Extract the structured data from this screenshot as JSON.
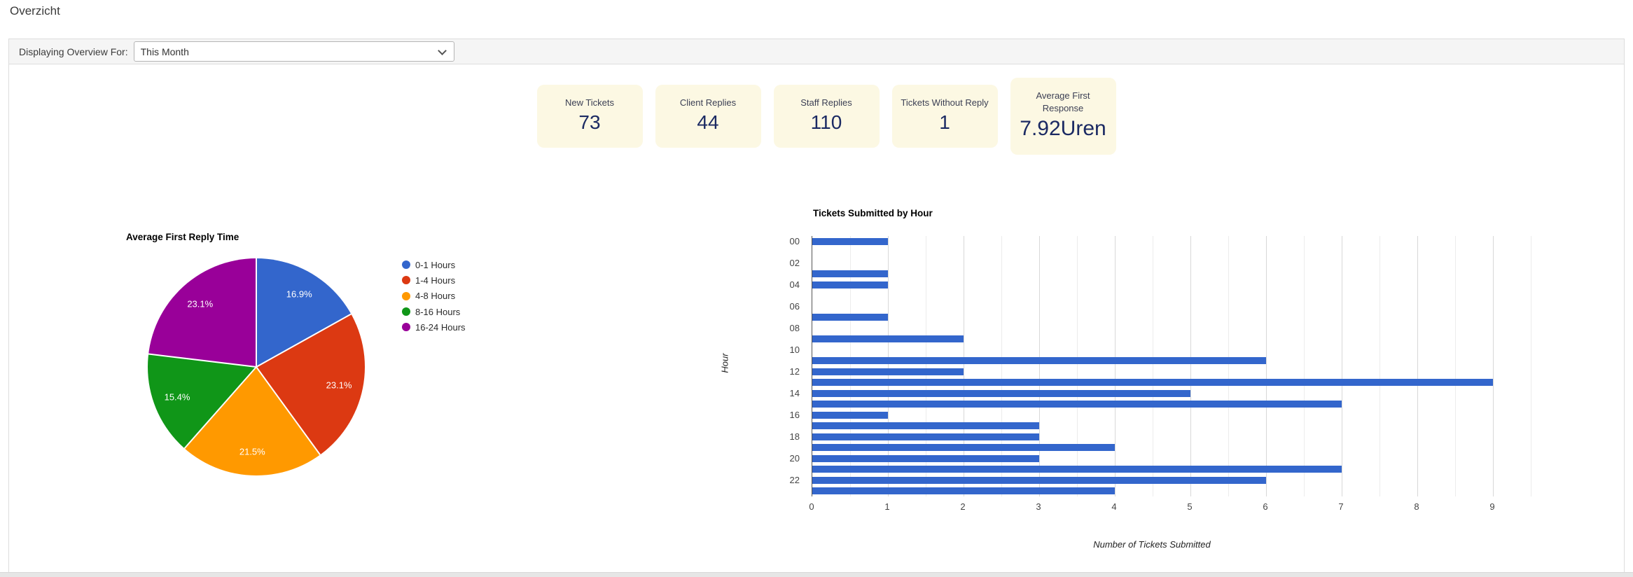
{
  "page": {
    "title": "Overzicht"
  },
  "toolbar": {
    "label": "Displaying Overview For:",
    "period_selected": "This Month"
  },
  "stats": [
    {
      "label": "New Tickets",
      "value": "73"
    },
    {
      "label": "Client Replies",
      "value": "44"
    },
    {
      "label": "Staff Replies",
      "value": "110"
    },
    {
      "label": "Tickets Without Reply",
      "value": "1"
    },
    {
      "label": "Average First Response",
      "value": "7.92Uren"
    }
  ],
  "chart_data": [
    {
      "type": "pie",
      "title": "Average First Reply Time",
      "legend_position": "right",
      "direction": "clockwise",
      "start_angle_deg": 0,
      "slices": [
        {
          "label": "0-1 Hours",
          "percent": 16.9,
          "color": "#3366CC"
        },
        {
          "label": "1-4 Hours",
          "percent": 23.1,
          "color": "#DC3912"
        },
        {
          "label": "4-8 Hours",
          "percent": 21.5,
          "color": "#FF9900"
        },
        {
          "label": "8-16 Hours",
          "percent": 15.4,
          "color": "#109618"
        },
        {
          "label": "16-24 Hours",
          "percent": 23.1,
          "color": "#990099"
        }
      ]
    },
    {
      "type": "bar",
      "orientation": "horizontal",
      "title": "Tickets Submitted by Hour",
      "xlabel": "Number of Tickets Submitted",
      "ylabel": "Hour",
      "categories": [
        "00",
        "01",
        "02",
        "03",
        "04",
        "05",
        "06",
        "07",
        "08",
        "09",
        "10",
        "11",
        "12",
        "13",
        "14",
        "15",
        "16",
        "17",
        "18",
        "19",
        "20",
        "21",
        "22",
        "23"
      ],
      "values": [
        1,
        0,
        0,
        1,
        1,
        0,
        0,
        1,
        0,
        2,
        0,
        6,
        2,
        9,
        5,
        7,
        1,
        3,
        3,
        4,
        3,
        7,
        6,
        4
      ],
      "visible_ytick_labels": [
        "00",
        "02",
        "04",
        "06",
        "08",
        "10",
        "12",
        "14",
        "16",
        "18",
        "20",
        "22"
      ],
      "xticks": [
        0,
        1,
        2,
        3,
        4,
        5,
        6,
        7,
        8,
        9
      ],
      "xlim": [
        0,
        9.5
      ],
      "grid": true,
      "bar_color": "#3366CC"
    }
  ]
}
